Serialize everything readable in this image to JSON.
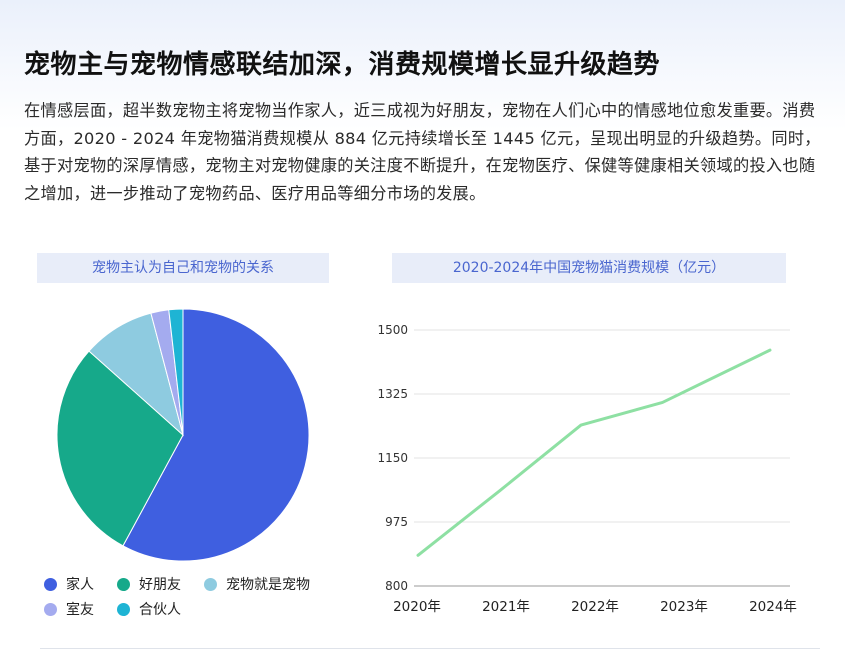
{
  "title": "宠物主与宠物情感联结加深，消费规模增长显升级趋势",
  "paragraph": "在情感层面，超半数宠物主将宠物当作家人，近三成视为好朋友，宠物在人们心中的情感地位愈发重要。消费方面，2020 - 2024 年宠物猫消费规模从 884 亿元持续增长至 1445 亿元，呈现出明显的升级趋势。同时，基于对宠物的深厚情感，宠物主对宠物健康的关注度不断提升，在宠物医疗、保健等健康相关领域的投入也随之增加，进一步推动了宠物药品、医疗用品等细分市场的发展。",
  "colors": {
    "家人": "#3f5fe0",
    "好朋友": "#16a98a",
    "宠物就是宠物": "#8ecbe0",
    "室友": "#a4abef",
    "合伙人": "#1eb4d4",
    "line": "#8ee0a3"
  },
  "chart_data": [
    {
      "type": "pie",
      "title": "宠物主认为自己和宠物的关系",
      "categories": [
        "家人",
        "好朋友",
        "宠物就是宠物",
        "室友",
        "合伙人"
      ],
      "values": [
        57.9,
        28.7,
        9.3,
        2.3,
        1.8
      ],
      "legend_position": "bottom"
    },
    {
      "type": "line",
      "title": "2020-2024年中国宠物猫消费规模（亿元）",
      "categories": [
        "2020年",
        "2021年",
        "2022年",
        "2023年",
        "2024年"
      ],
      "series": [
        {
          "values": [
            884,
            1060,
            1240,
            1302,
            1445
          ]
        }
      ],
      "ylim": [
        800,
        1500
      ],
      "yticks": [
        "800",
        "975",
        "1150",
        "1325",
        "1500"
      ],
      "grid": true
    }
  ]
}
